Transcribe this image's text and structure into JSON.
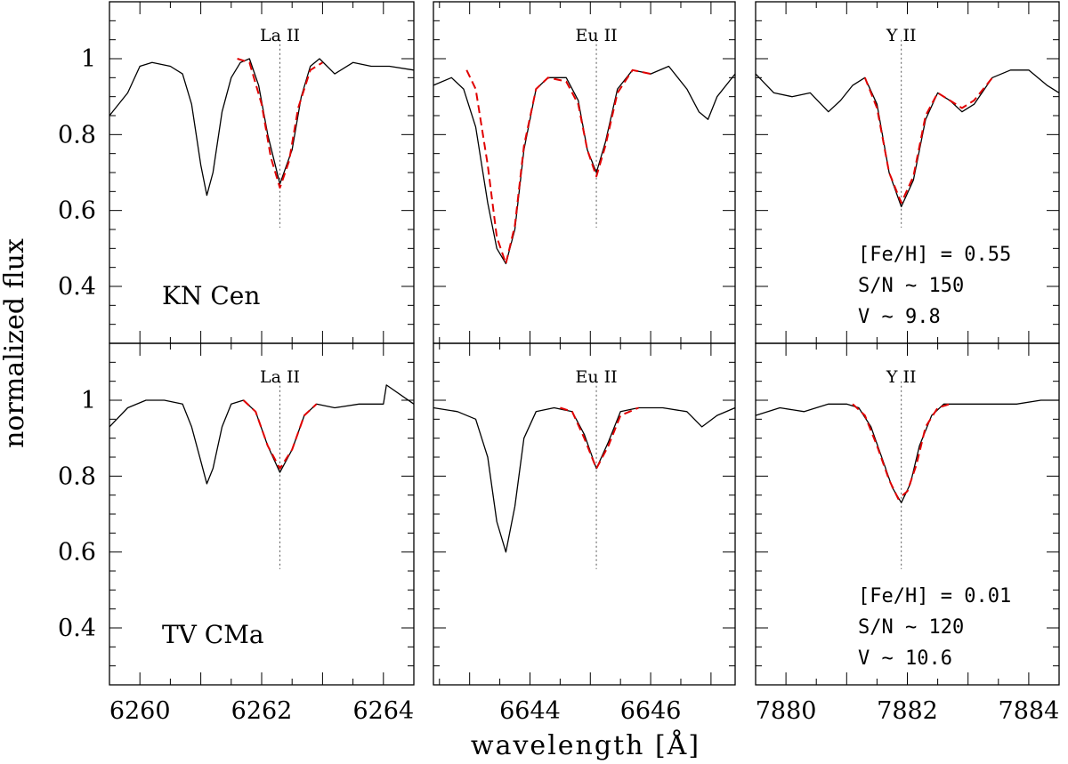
{
  "figure": {
    "ylabel": "normalized flux",
    "xlabel": "wavelength [Å]"
  },
  "colors": {
    "observed": "#000000",
    "model": "#e00000",
    "marker": "#555555"
  },
  "chart_data": [
    {
      "type": "line",
      "row": 0,
      "col": 0,
      "star": "KN Cen",
      "line_label": "La II",
      "line_center": 6262.3,
      "xlim": [
        6259.5,
        6264.5
      ],
      "ylim": [
        0.25,
        1.15
      ],
      "xticks": [
        6260,
        6262,
        6264
      ],
      "yticks": [
        0.4,
        0.6,
        0.8,
        1.0
      ],
      "series": [
        {
          "role": "observed",
          "x": [
            6259.5,
            6259.8,
            6260.0,
            6260.2,
            6260.5,
            6260.7,
            6260.85,
            6261.0,
            6261.1,
            6261.2,
            6261.35,
            6261.5,
            6261.65,
            6261.8,
            6261.95,
            6262.1,
            6262.3,
            6262.5,
            6262.65,
            6262.8,
            6262.95,
            6263.2,
            6263.5,
            6263.8,
            6264.1,
            6264.5
          ],
          "y": [
            0.85,
            0.91,
            0.98,
            0.99,
            0.98,
            0.96,
            0.88,
            0.72,
            0.64,
            0.7,
            0.86,
            0.95,
            0.99,
            1.0,
            0.93,
            0.8,
            0.67,
            0.76,
            0.9,
            0.98,
            1.0,
            0.96,
            0.99,
            0.98,
            0.98,
            0.97
          ]
        },
        {
          "role": "model",
          "x": [
            6261.6,
            6261.8,
            6262.0,
            6262.15,
            6262.3,
            6262.45,
            6262.6,
            6262.8,
            6263.0
          ],
          "y": [
            1.0,
            0.99,
            0.88,
            0.74,
            0.66,
            0.73,
            0.87,
            0.97,
            0.99
          ]
        }
      ]
    },
    {
      "type": "line",
      "row": 0,
      "col": 1,
      "star": "",
      "line_label": "Eu II",
      "line_center": 6645.1,
      "xlim": [
        6642.4,
        6647.4
      ],
      "ylim": [
        0.25,
        1.15
      ],
      "xticks": [
        6644,
        6646
      ],
      "yticks": [
        0.4,
        0.6,
        0.8,
        1.0
      ],
      "series": [
        {
          "role": "observed",
          "x": [
            6642.4,
            6642.7,
            6642.9,
            6643.1,
            6643.3,
            6643.45,
            6643.6,
            6643.75,
            6643.9,
            6644.1,
            6644.3,
            6644.6,
            6644.8,
            6644.95,
            6645.1,
            6645.25,
            6645.45,
            6645.7,
            6646.0,
            6646.3,
            6646.6,
            6646.8,
            6646.95,
            6647.1,
            6647.4
          ],
          "y": [
            0.93,
            0.95,
            0.92,
            0.82,
            0.62,
            0.5,
            0.46,
            0.55,
            0.76,
            0.92,
            0.95,
            0.95,
            0.89,
            0.76,
            0.7,
            0.78,
            0.92,
            0.97,
            0.96,
            0.98,
            0.92,
            0.86,
            0.84,
            0.9,
            0.96
          ]
        },
        {
          "role": "model",
          "x": [
            6642.95,
            6643.1,
            6643.3,
            6643.45,
            6643.6,
            6643.75,
            6643.9,
            6644.1,
            6644.3,
            6644.6,
            6644.8,
            6644.95,
            6645.1,
            6645.25,
            6645.45,
            6645.7,
            6646.0
          ],
          "y": [
            0.97,
            0.92,
            0.72,
            0.53,
            0.46,
            0.56,
            0.77,
            0.92,
            0.95,
            0.94,
            0.88,
            0.76,
            0.69,
            0.77,
            0.91,
            0.97,
            0.96
          ]
        }
      ]
    },
    {
      "type": "line",
      "row": 0,
      "col": 2,
      "star": "",
      "line_label": "Y II",
      "line_center": 7881.9,
      "xlim": [
        7879.5,
        7884.5
      ],
      "ylim": [
        0.25,
        1.15
      ],
      "xticks": [
        7880,
        7882,
        7884
      ],
      "yticks": [
        0.4,
        0.6,
        0.8,
        1.0
      ],
      "series": [
        {
          "role": "observed",
          "x": [
            7879.5,
            7879.8,
            7880.1,
            7880.4,
            7880.7,
            7880.9,
            7881.1,
            7881.3,
            7881.5,
            7881.7,
            7881.9,
            7882.1,
            7882.3,
            7882.5,
            7882.7,
            7882.9,
            7883.1,
            7883.4,
            7883.7,
            7884.0,
            7884.3,
            7884.5
          ],
          "y": [
            0.96,
            0.91,
            0.9,
            0.91,
            0.86,
            0.89,
            0.93,
            0.95,
            0.88,
            0.7,
            0.61,
            0.68,
            0.84,
            0.91,
            0.89,
            0.86,
            0.88,
            0.95,
            0.97,
            0.97,
            0.93,
            0.91
          ]
        },
        {
          "role": "model",
          "x": [
            7881.3,
            7881.5,
            7881.7,
            7881.9,
            7882.1,
            7882.3,
            7882.5,
            7882.7,
            7882.9,
            7883.1,
            7883.4
          ],
          "y": [
            0.95,
            0.87,
            0.7,
            0.62,
            0.69,
            0.85,
            0.91,
            0.89,
            0.87,
            0.89,
            0.95
          ]
        }
      ],
      "annotations": [
        "[Fe/H] = 0.55",
        "S/N ~ 150",
        "V ~ 9.8"
      ]
    },
    {
      "type": "line",
      "row": 1,
      "col": 0,
      "star": "TV CMa",
      "line_label": "La II",
      "line_center": 6262.3,
      "xlim": [
        6259.5,
        6264.5
      ],
      "ylim": [
        0.25,
        1.15
      ],
      "xticks": [
        6260,
        6262,
        6264
      ],
      "yticks": [
        0.4,
        0.6,
        0.8,
        1.0
      ],
      "series": [
        {
          "role": "observed",
          "x": [
            6259.5,
            6259.8,
            6260.1,
            6260.4,
            6260.7,
            6260.85,
            6261.0,
            6261.1,
            6261.2,
            6261.35,
            6261.5,
            6261.7,
            6261.9,
            6262.1,
            6262.3,
            6262.5,
            6262.7,
            6262.9,
            6263.2,
            6263.6,
            6264.0,
            6264.05,
            6264.5
          ],
          "y": [
            0.93,
            0.98,
            1.0,
            1.0,
            0.99,
            0.93,
            0.84,
            0.78,
            0.82,
            0.93,
            0.99,
            1.0,
            0.97,
            0.88,
            0.81,
            0.87,
            0.96,
            0.99,
            0.98,
            0.99,
            0.99,
            1.04,
            0.99
          ]
        },
        {
          "role": "model",
          "x": [
            6261.7,
            6261.9,
            6262.1,
            6262.3,
            6262.5,
            6262.7,
            6262.9
          ],
          "y": [
            1.0,
            0.97,
            0.88,
            0.82,
            0.87,
            0.96,
            0.99
          ]
        }
      ]
    },
    {
      "type": "line",
      "row": 1,
      "col": 1,
      "star": "",
      "line_label": "Eu II",
      "line_center": 6645.1,
      "xlim": [
        6642.4,
        6647.4
      ],
      "ylim": [
        0.25,
        1.15
      ],
      "xticks": [
        6644,
        6646
      ],
      "yticks": [
        0.4,
        0.6,
        0.8,
        1.0
      ],
      "series": [
        {
          "role": "observed",
          "x": [
            6642.4,
            6642.8,
            6643.1,
            6643.3,
            6643.45,
            6643.6,
            6643.75,
            6643.9,
            6644.1,
            6644.4,
            6644.7,
            6644.9,
            6645.1,
            6645.3,
            6645.5,
            6645.8,
            6646.2,
            6646.6,
            6646.85,
            6647.1,
            6647.4
          ],
          "y": [
            0.98,
            0.97,
            0.95,
            0.85,
            0.68,
            0.6,
            0.72,
            0.9,
            0.97,
            0.98,
            0.97,
            0.91,
            0.82,
            0.89,
            0.97,
            0.98,
            0.98,
            0.97,
            0.93,
            0.96,
            0.98
          ]
        },
        {
          "role": "model",
          "x": [
            6644.5,
            6644.7,
            6644.9,
            6645.1,
            6645.3,
            6645.5,
            6645.8
          ],
          "y": [
            0.98,
            0.97,
            0.9,
            0.82,
            0.88,
            0.96,
            0.98
          ]
        }
      ]
    },
    {
      "type": "line",
      "row": 1,
      "col": 2,
      "star": "",
      "line_label": "Y II",
      "line_center": 7881.9,
      "xlim": [
        7879.5,
        7884.5
      ],
      "ylim": [
        0.25,
        1.15
      ],
      "xticks": [
        7880,
        7882,
        7884
      ],
      "yticks": [
        0.4,
        0.6,
        0.8,
        1.0
      ],
      "series": [
        {
          "role": "observed",
          "x": [
            7879.5,
            7879.9,
            7880.3,
            7880.7,
            7881.0,
            7881.2,
            7881.4,
            7881.6,
            7881.75,
            7881.9,
            7882.05,
            7882.2,
            7882.4,
            7882.6,
            7882.9,
            7883.3,
            7883.8,
            7884.2,
            7884.5
          ],
          "y": [
            0.96,
            0.98,
            0.97,
            0.99,
            0.99,
            0.98,
            0.93,
            0.84,
            0.77,
            0.73,
            0.78,
            0.88,
            0.96,
            0.99,
            0.99,
            0.99,
            0.99,
            1.0,
            1.0
          ]
        },
        {
          "role": "model",
          "x": [
            7881.1,
            7881.3,
            7881.5,
            7881.7,
            7881.85,
            7882.0,
            7882.15,
            7882.3,
            7882.5,
            7882.7
          ],
          "y": [
            0.99,
            0.96,
            0.88,
            0.79,
            0.74,
            0.76,
            0.83,
            0.93,
            0.98,
            0.99
          ]
        }
      ],
      "annotations": [
        "[Fe/H] = 0.01",
        "S/N ~ 120",
        "V ~ 10.6"
      ]
    }
  ]
}
